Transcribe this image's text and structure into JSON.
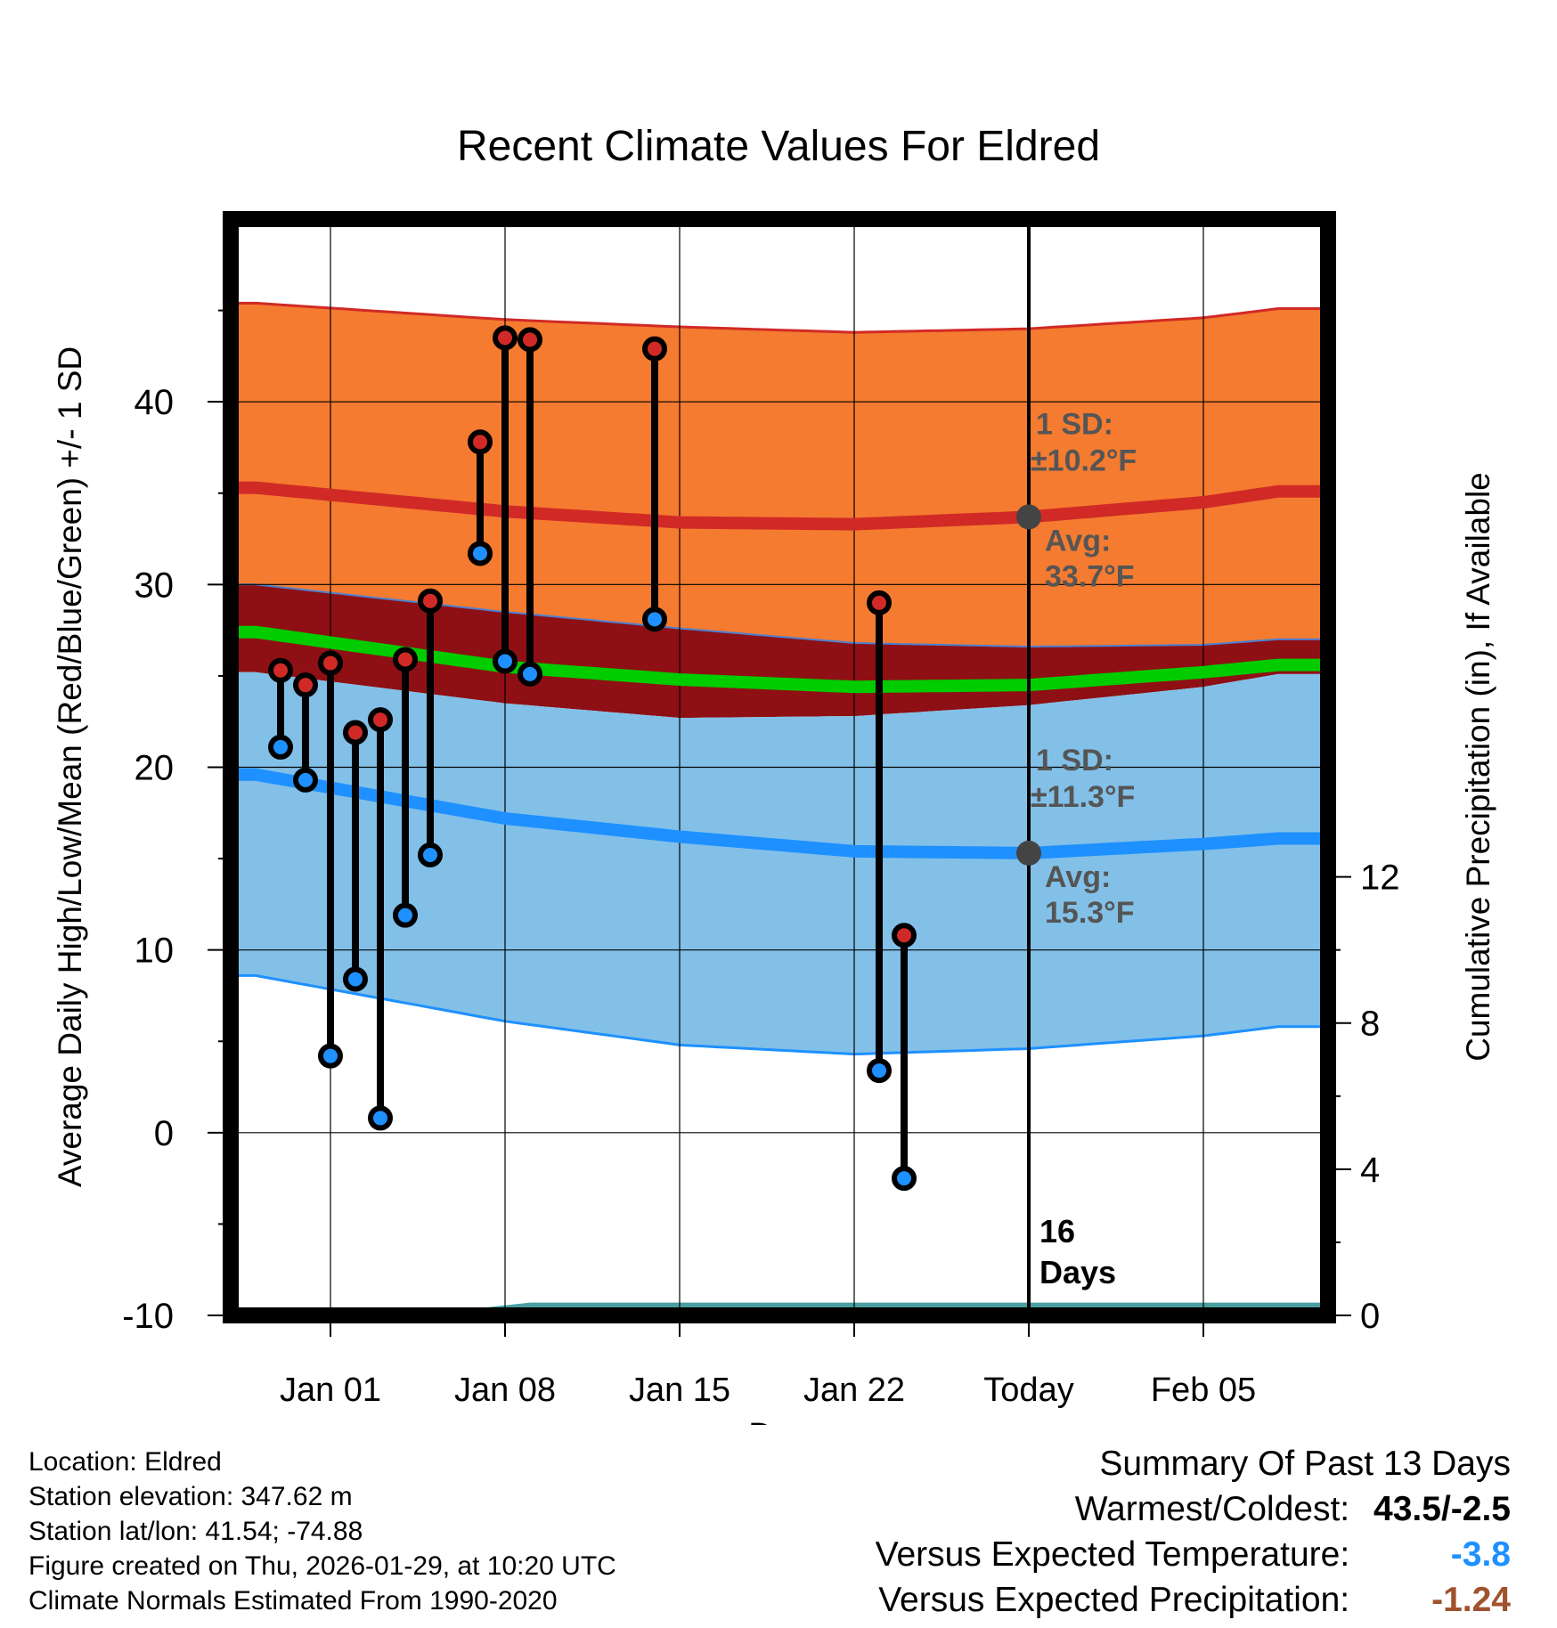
{
  "chart_data": {
    "type": "line",
    "title": "Recent Climate Values For Eldred",
    "xlabel": "Day",
    "ylabel_left": "Average Daily High/Low/Mean (Red/Blue/Green) +/- 1 SD",
    "ylabel_right": "Cumulative Precipitation (in), If Available",
    "x_range_days": [
      -4,
      40
    ],
    "ylim_left": [
      -10,
      50
    ],
    "ylim_right": [
      0,
      30
    ],
    "x_tick_days": [
      0,
      7,
      14,
      21,
      28,
      35
    ],
    "x_tick_labels": [
      "Jan 01",
      "Jan 08",
      "Jan 15",
      "Jan 22",
      "Today",
      "Feb 05"
    ],
    "y_ticks_left": [
      -10,
      0,
      10,
      20,
      30,
      40
    ],
    "y_tick_labels_left": [
      "-10",
      "0",
      "10",
      "20",
      "30",
      "40"
    ],
    "y_ticks_right": [
      0,
      4,
      8,
      12
    ],
    "y_tick_labels_right": [
      "0",
      "4",
      "8",
      "12"
    ],
    "today_day": 28,
    "today_label": "Today",
    "days_label_1": "16",
    "days_label_2": "Days",
    "normals": {
      "days": [
        -3,
        7,
        14,
        21,
        28,
        35,
        38
      ],
      "high_avg": [
        35.3,
        34.0,
        33.4,
        33.3,
        33.7,
        34.5,
        35.1
      ],
      "high_sd_upper": [
        45.4,
        44.5,
        44.1,
        43.8,
        44.0,
        44.6,
        45.1
      ],
      "low_avg": [
        19.6,
        17.2,
        16.2,
        15.4,
        15.3,
        15.8,
        16.1
      ],
      "low_sd_upper": [
        30.0,
        28.5,
        27.6,
        26.8,
        26.6,
        26.7,
        27.0
      ],
      "low_sd_lower": [
        8.6,
        6.1,
        4.8,
        4.3,
        4.6,
        5.3,
        5.8
      ],
      "mean_avg": [
        27.4,
        25.5,
        24.8,
        24.4,
        24.5,
        25.2,
        25.6
      ]
    },
    "high_annotation": {
      "sd_title": "1 SD:",
      "sd_value": "±10.2°F",
      "avg_title": "Avg:",
      "avg_value": "33.7°F",
      "avg": 33.7
    },
    "low_annotation": {
      "sd_title": "1 SD:",
      "sd_value": "±11.3°F",
      "avg_title": "Avg:",
      "avg_value": "15.3°F",
      "avg": 15.3
    },
    "observations": [
      {
        "day": -2,
        "high": 25.3,
        "low": 21.1
      },
      {
        "day": -1,
        "high": 24.5,
        "low": 19.3
      },
      {
        "day": 0,
        "high": 25.7,
        "low": 4.2
      },
      {
        "day": 1,
        "high": 21.9,
        "low": 8.4
      },
      {
        "day": 2,
        "high": 22.6,
        "low": 0.8
      },
      {
        "day": 3,
        "high": 25.9,
        "low": 11.9
      },
      {
        "day": 4,
        "high": 29.1,
        "low": 15.2
      },
      {
        "day": 6,
        "high": 37.8,
        "low": 31.7
      },
      {
        "day": 7,
        "high": 43.5,
        "low": 25.8
      },
      {
        "day": 8,
        "high": 43.4,
        "low": 25.1
      },
      {
        "day": 13,
        "high": 42.9,
        "low": 28.1
      },
      {
        "day": 22,
        "high": 29.0,
        "low": 3.4
      },
      {
        "day": 23,
        "high": 10.8,
        "low": -2.5
      }
    ],
    "precipitation": {
      "days": [
        -3,
        5,
        6,
        8,
        40
      ],
      "values": [
        0.0,
        0.0,
        0.2,
        0.35,
        0.35
      ]
    },
    "colors": {
      "high_band": "#f47b30",
      "high_line": "#d12a26",
      "overlap_band": "#8e1014",
      "low_band": "#82c0e8",
      "low_line": "#1e90ff",
      "mean_line": "#00cc00",
      "precip": "#4a9ea0",
      "high_dot": "#d12a26",
      "low_dot": "#1e90ff",
      "annotation": "#555555",
      "avg_marker": "#444444"
    }
  },
  "location": {
    "location_line": "Location: Eldred",
    "elevation_line": "Station elevation: 347.62 m",
    "latlon_line": "Station lat/lon: 41.54; -74.88",
    "created_line": "Figure created on Thu, 2026-01-29, at 10:20 UTC",
    "normals_line": "Climate Normals Estimated From 1990-2020"
  },
  "summary": {
    "title": "Summary Of Past 13 Days",
    "warm_cold_label": "Warmest/Coldest:",
    "warm_cold_value": "43.5/-2.5",
    "temp_label": "Versus Expected Temperature:",
    "temp_value": "-3.8",
    "temp_color": "#1e90ff",
    "precip_label": "Versus Expected Precipitation:",
    "precip_value": "-1.24",
    "precip_color": "#a0522d"
  }
}
